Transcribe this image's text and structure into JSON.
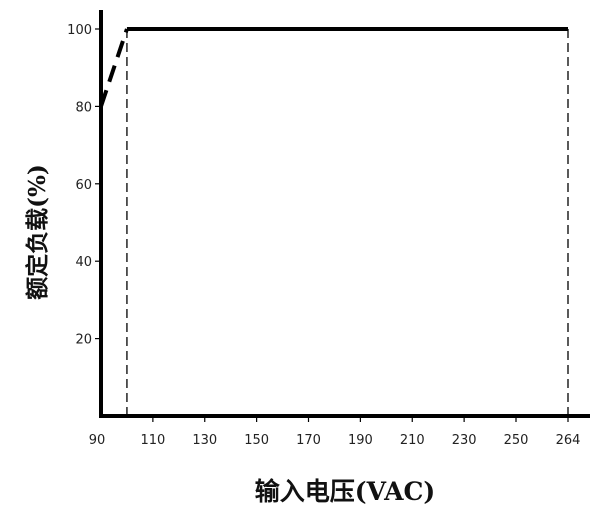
{
  "chart_data": {
    "type": "line",
    "title": "",
    "xlabel": "输入电压(VAC)",
    "ylabel": "额定负载(%)",
    "x_ticks": [
      90,
      110,
      130,
      150,
      170,
      190,
      210,
      230,
      250,
      264
    ],
    "y_ticks": [
      20,
      40,
      60,
      80,
      100
    ],
    "xlim": [
      90,
      270
    ],
    "ylim": [
      0,
      100
    ],
    "grid": false,
    "series": [
      {
        "segments": [
          {
            "style": "solid",
            "x": [
              90,
              90
            ],
            "y": [
              80,
              100
            ]
          },
          {
            "style": "dashed",
            "x": [
              90,
              100
            ],
            "y": [
              80,
              100
            ]
          },
          {
            "style": "solid",
            "x": [
              100,
              264
            ],
            "y": [
              100,
              100
            ]
          }
        ]
      }
    ],
    "reference_lines": [
      {
        "style": "dashed",
        "axis": "x",
        "value": 100
      },
      {
        "style": "dashed",
        "axis": "x",
        "value": 264
      }
    ],
    "colors": {
      "line": "#000000",
      "axis": "#000000",
      "text": "#222222"
    }
  }
}
